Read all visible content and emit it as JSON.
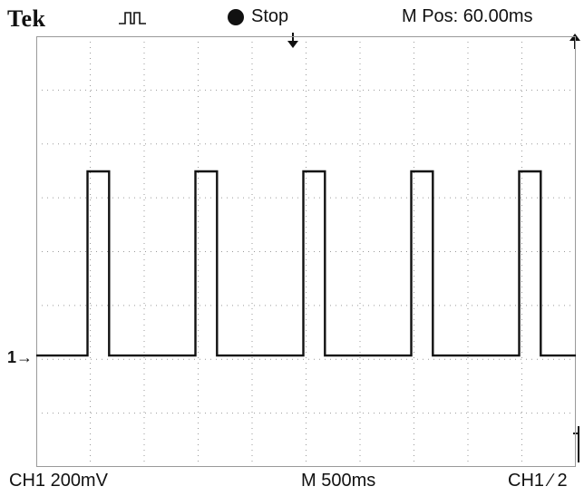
{
  "header": {
    "brand": "Tek",
    "acquisition_icon": "pulse-icon",
    "status": "Stop",
    "status_icon": "stop-dot-icon",
    "mpos": "M Pos: 60.00ms"
  },
  "footer": {
    "channel_scale": "CH1  200mV",
    "time_scale": "M 500ms",
    "trigger": "CH1 ∕ 2"
  },
  "markers": {
    "ground": "1→",
    "trigger_position_icon": "down-arrow-icon",
    "right_top_icon": "up-arrow-icon"
  },
  "trace": {
    "high": 1,
    "low": 0,
    "pulses": [
      {
        "start": 0.95,
        "end": 1.35
      },
      {
        "start": 2.95,
        "end": 3.35
      },
      {
        "start": 4.95,
        "end": 5.35
      },
      {
        "start": 6.95,
        "end": 7.35
      },
      {
        "start": 8.95,
        "end": 9.35
      }
    ],
    "divisions_x": 10,
    "divisions_y": 8
  },
  "colors": {
    "trace": "#111111",
    "grid": "#9a9a9a",
    "background": "#ffffff"
  }
}
